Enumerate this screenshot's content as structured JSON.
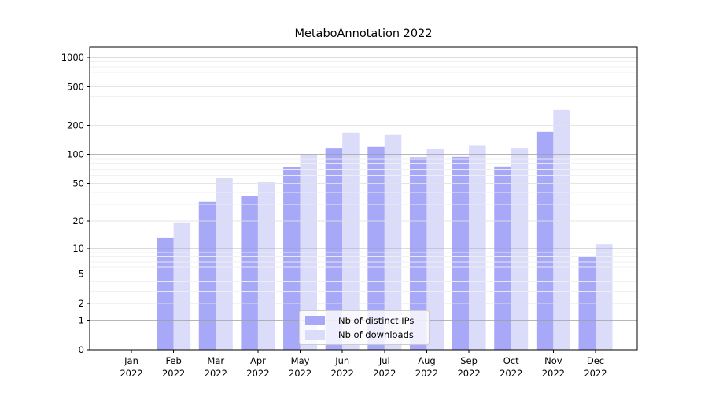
{
  "chart_data": {
    "type": "bar",
    "title": "MetaboAnnotation 2022",
    "categories": [
      "Jan 2022",
      "Feb 2022",
      "Mar 2022",
      "Apr 2022",
      "May 2022",
      "Jun 2022",
      "Jul 2022",
      "Aug 2022",
      "Sep 2022",
      "Oct 2022",
      "Nov 2022",
      "Dec 2022"
    ],
    "series": [
      {
        "name": "Nb of distinct IPs",
        "color": "#a8a8f9",
        "values": [
          0,
          13,
          32,
          37,
          74,
          117,
          120,
          93,
          94,
          75,
          171,
          8
        ]
      },
      {
        "name": "Nb of downloads",
        "color": "#dbdbfa",
        "values": [
          0,
          19,
          57,
          52,
          100,
          168,
          159,
          115,
          123,
          117,
          288,
          11
        ]
      }
    ],
    "xlabel": "",
    "ylabel": "",
    "y_ticks": [
      0,
      1,
      2,
      5,
      10,
      20,
      50,
      100,
      200,
      500,
      1000
    ],
    "y_scale": "log10(1+x)",
    "ylim": [
      0,
      1270
    ],
    "grid": true,
    "legend_position": "lower center"
  },
  "colors": {
    "background": "#ffffff",
    "axis": "#000000",
    "tick_label": "#000000",
    "grid_major": "#9f9f9f",
    "grid_labeled_minor": "#e2e2e2",
    "grid_minor": "#efefef",
    "legend_border": "#cccccc"
  }
}
